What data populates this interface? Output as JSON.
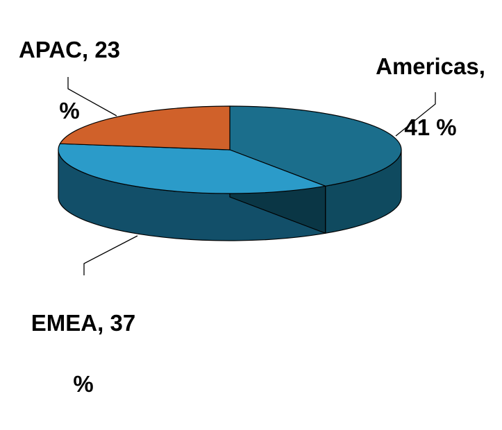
{
  "chart_data": {
    "type": "pie",
    "style": "3d",
    "title": "",
    "slices": [
      {
        "label": "Americas",
        "value": 41,
        "unit": "%",
        "color": "#1B6E8C",
        "side_color": "#0F4A5F",
        "wall_color": "#0A3645"
      },
      {
        "label": "EMEA",
        "value": 37,
        "unit": "%",
        "color": "#2B9BC9",
        "side_color": "#124F69",
        "wall_color": "#0C3B4E"
      },
      {
        "label": "APAC",
        "value": 23,
        "unit": "%",
        "color": "#D0612A",
        "side_color": "#8A3D17",
        "wall_color": "#6E3012"
      }
    ],
    "legend": "none",
    "data_labels": [
      {
        "slice": "Americas",
        "line1": "Americas,",
        "line2": "41 %"
      },
      {
        "slice": "EMEA",
        "line1": "EMEA, 37",
        "line2": "%"
      },
      {
        "slice": "APAC",
        "line1": "APAC, 23",
        "line2": "%"
      }
    ]
  }
}
